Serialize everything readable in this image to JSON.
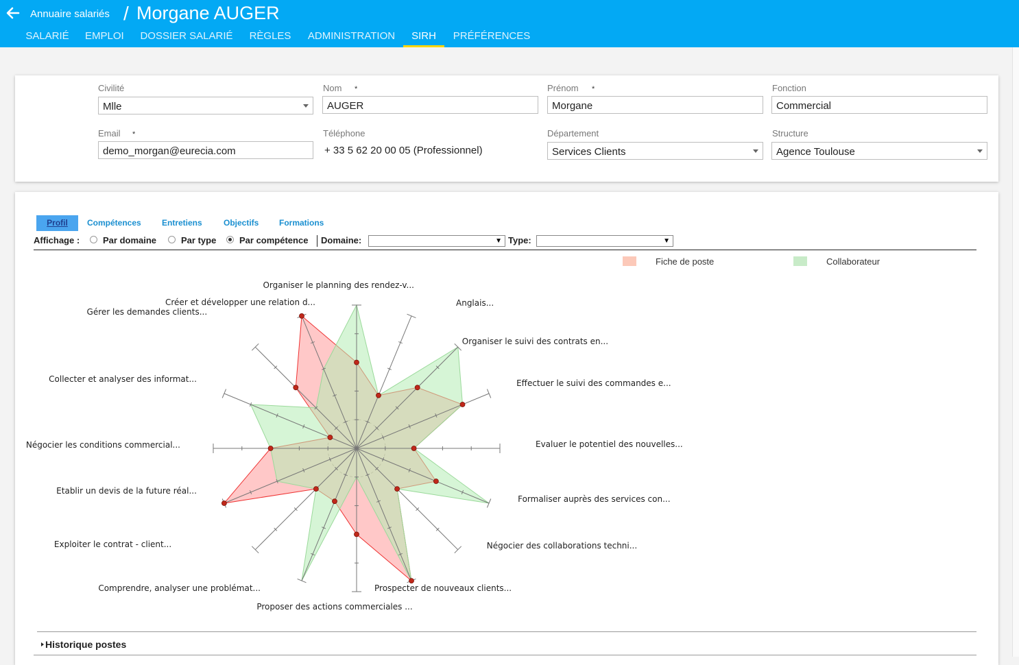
{
  "header": {
    "breadcrumb": "Annuaire salariés",
    "separator": "/",
    "title": "Morgane AUGER",
    "tabs": [
      {
        "label": "SALARIÉ",
        "active": false
      },
      {
        "label": "EMPLOI",
        "active": false
      },
      {
        "label": "DOSSIER SALARIÉ",
        "active": false
      },
      {
        "label": "RÈGLES",
        "active": false
      },
      {
        "label": "ADMINISTRATION",
        "active": false
      },
      {
        "label": "SIRH",
        "active": true
      },
      {
        "label": "PRÉFÉRENCES",
        "active": false
      }
    ]
  },
  "identity": {
    "civilite": {
      "label": "Civilité",
      "value": "Mlle"
    },
    "nom": {
      "label": "Nom",
      "value": "AUGER",
      "required_mark": "*"
    },
    "prenom": {
      "label": "Prénom",
      "value": "Morgane",
      "required_mark": "*"
    },
    "fonction": {
      "label": "Fonction",
      "value": "Commercial"
    },
    "email": {
      "label": "Email",
      "value": "demo_morgan@eurecia.com",
      "required_mark": "*"
    },
    "telephone": {
      "label": "Téléphone",
      "value": "+ 33 5 62 20 00 05 (Professionnel)"
    },
    "departement": {
      "label": "Département",
      "value": "Services Clients"
    },
    "structure": {
      "label": "Structure",
      "value": "Agence Toulouse"
    }
  },
  "sirh": {
    "subtabs": [
      "Profil",
      "Compétences",
      "Entretiens",
      "Objectifs",
      "Formations"
    ],
    "active_subtab": "Profil",
    "affichage": {
      "label": "Affichage :",
      "options": [
        "Par domaine",
        "Par type",
        "Par compétence"
      ],
      "selected": "Par compétence",
      "domaine_label": "Domaine:",
      "type_label": "Type:"
    },
    "history_label": "Historique postes"
  },
  "chart_data": {
    "type": "radar",
    "axes": [
      "Organiser le planning des rendez-v...",
      "Anglais...",
      "Organiser le suivi des contrats en...",
      "Effectuer le suivi des commandes e...",
      "Evaluer le potentiel des nouvelles...",
      "Formaliser auprès des services con...",
      "Négocier des collaborations techni...",
      "Prospecter de nouveaux clients...",
      "Proposer des actions commerciales ...",
      "Comprendre, analyser une problémat...",
      "Exploiter le contrat - client...",
      "Etablir un devis de la future réal...",
      "Négocier les conditions commercial...",
      "Collecter et analyser des informat...",
      "Gérer les demandes clients...",
      "Créer et développer une relation d..."
    ],
    "rmax": 5,
    "series": [
      {
        "name": "Fiche de poste",
        "color": "#ff9a9a",
        "values": [
          3,
          2,
          3,
          4,
          2,
          3,
          2,
          5,
          3,
          2,
          2,
          5,
          3,
          1,
          3,
          5
        ]
      },
      {
        "name": "Collaborateur",
        "color": "#b4ecb4",
        "values": [
          5,
          2,
          5,
          4,
          2,
          5,
          2,
          5,
          1,
          5,
          2,
          3,
          3,
          4,
          2,
          3
        ]
      }
    ],
    "legend_position": "top-right"
  },
  "colors": {
    "header": "#03a9f4",
    "active_tab_underline": "#ffd600",
    "subtab_active": "#4aa5ef",
    "legend_fiche": "#fcc9b9",
    "legend_collab": "#c8ebc8"
  }
}
